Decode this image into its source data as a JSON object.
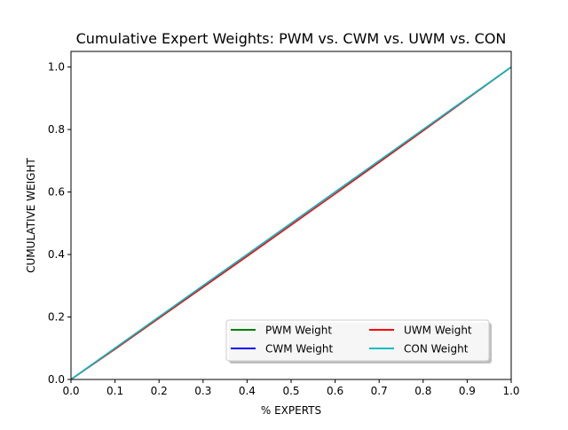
{
  "chart_data": {
    "type": "line",
    "title": "Cumulative Expert Weights: PWM vs. CWM vs. UWM vs. CON",
    "xlabel": "% EXPERTS",
    "ylabel": "CUMULATIVE WEIGHT",
    "xlim": [
      0.0,
      1.0
    ],
    "ylim": [
      0.0,
      1.05
    ],
    "xticks": [
      "0.0",
      "0.1",
      "0.2",
      "0.3",
      "0.4",
      "0.5",
      "0.6",
      "0.7",
      "0.8",
      "0.9",
      "1.0"
    ],
    "yticks": [
      "0.0",
      "0.2",
      "0.4",
      "0.6",
      "0.8",
      "1.0"
    ],
    "grid": false,
    "legend": {
      "placement": "lower-right",
      "columns": 2
    },
    "x": [
      0.0,
      0.1,
      0.2,
      0.3,
      0.4,
      0.5,
      0.6,
      0.7,
      0.8,
      0.9,
      1.0
    ],
    "series": [
      {
        "name": "PWM Weight",
        "color": "#008000",
        "values": [
          0.0,
          0.1,
          0.2,
          0.3,
          0.4,
          0.5,
          0.6,
          0.7,
          0.8,
          0.9,
          1.0
        ]
      },
      {
        "name": "CWM Weight",
        "color": "#0000ff",
        "values": [
          0.0,
          0.1,
          0.2,
          0.3,
          0.4,
          0.5,
          0.6,
          0.7,
          0.8,
          0.9,
          1.0
        ]
      },
      {
        "name": "UWM Weight",
        "color": "#ff0000",
        "values": [
          0.0,
          0.097,
          0.196,
          0.295,
          0.394,
          0.494,
          0.594,
          0.695,
          0.796,
          0.898,
          1.0
        ]
      },
      {
        "name": "CON Weight",
        "color": "#00bfbf",
        "values": [
          0.0,
          0.1,
          0.2,
          0.3,
          0.4,
          0.5,
          0.6,
          0.7,
          0.8,
          0.9,
          1.0
        ]
      }
    ]
  }
}
